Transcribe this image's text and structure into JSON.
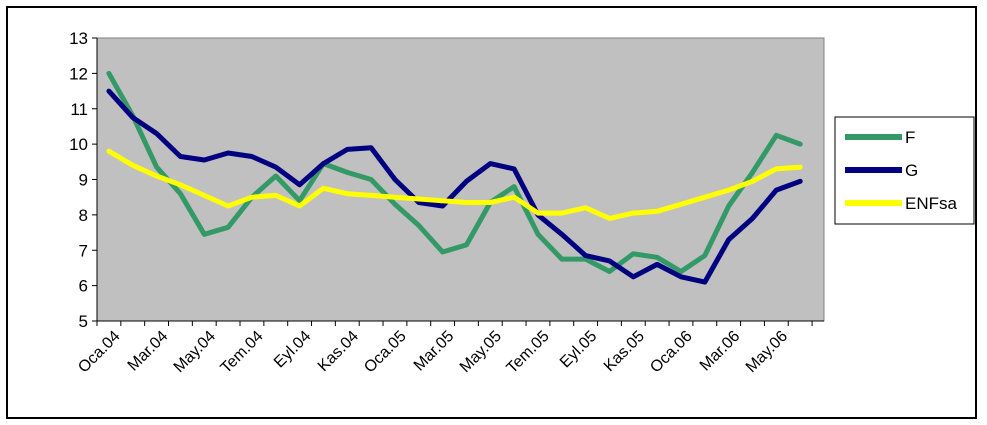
{
  "chart_data": {
    "type": "line",
    "title": "",
    "xlabel": "",
    "ylabel": "",
    "ylim": [
      5,
      13
    ],
    "y_ticks": [
      5,
      6,
      7,
      8,
      9,
      10,
      11,
      12,
      13
    ],
    "x_tick_labels": [
      "Oca.04",
      "Mar.04",
      "May.04",
      "Tem.04",
      "Eyl.04",
      "Kas.04",
      "Oca.05",
      "Mar.05",
      "May.05",
      "Tem.05",
      "Eyl.05",
      "Kas.05",
      "Oca.06",
      "Mar.06",
      "May.06"
    ],
    "grid": false,
    "legend_position": "right",
    "plot_background": "#c0c0c0",
    "series": [
      {
        "name": "F",
        "color": "#339966",
        "values": [
          12.0,
          10.8,
          9.35,
          8.6,
          7.45,
          7.65,
          8.5,
          9.1,
          8.4,
          9.45,
          9.2,
          9.0,
          8.3,
          7.7,
          6.95,
          7.15,
          8.35,
          8.8,
          7.45,
          6.75,
          6.75,
          6.4,
          6.9,
          6.8,
          6.4,
          6.85,
          8.25,
          9.2,
          10.25,
          10.0
        ]
      },
      {
        "name": "G",
        "color": "#000080",
        "values": [
          11.5,
          10.75,
          10.3,
          9.65,
          9.55,
          9.75,
          9.65,
          9.35,
          8.85,
          9.45,
          9.85,
          9.9,
          9.0,
          8.35,
          8.25,
          8.95,
          9.45,
          9.3,
          8.0,
          7.45,
          6.85,
          6.7,
          6.25,
          6.6,
          6.25,
          6.1,
          7.3,
          7.9,
          8.7,
          8.95
        ]
      },
      {
        "name": "ENFsa",
        "color": "#ffff00",
        "values": [
          9.8,
          9.4,
          9.1,
          8.85,
          8.55,
          8.25,
          8.5,
          8.55,
          8.25,
          8.75,
          8.6,
          8.55,
          8.5,
          8.45,
          8.4,
          8.35,
          8.35,
          8.5,
          8.05,
          8.05,
          8.2,
          7.9,
          8.05,
          8.1,
          8.3,
          8.5,
          8.7,
          8.95,
          9.3,
          9.35
        ]
      }
    ]
  }
}
